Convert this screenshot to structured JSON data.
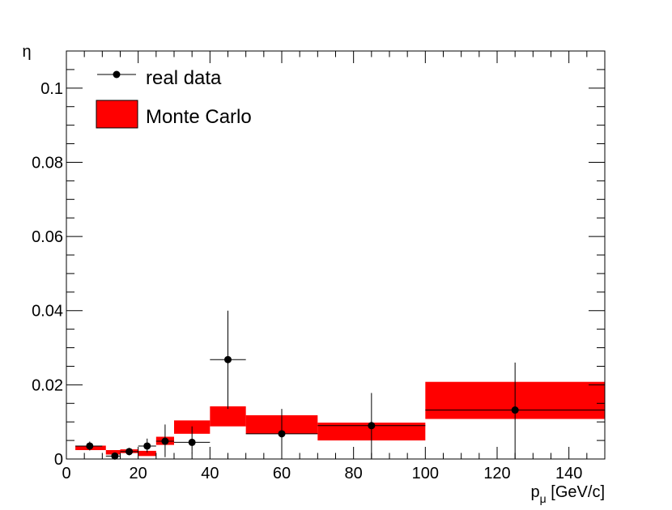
{
  "chart_data": {
    "type": "scatter",
    "xlabel": "p",
    "xlabel_sub": "μ",
    "xlabel_unit": " [GeV/c]",
    "ylabel": "η",
    "xlim": [
      0,
      150
    ],
    "ylim": [
      0,
      0.11
    ],
    "xticks": [
      0,
      20,
      40,
      60,
      80,
      100,
      120,
      140
    ],
    "xtick_labels": [
      "0",
      "20",
      "40",
      "60",
      "80",
      "100",
      "120",
      "140"
    ],
    "yticks": [
      0,
      0.02,
      0.04,
      0.06,
      0.08,
      0.1
    ],
    "ytick_labels": [
      "0",
      "0.02",
      "0.04",
      "0.06",
      "0.08",
      "0.1"
    ],
    "grid": false,
    "legend_position": "top-left",
    "series": [
      {
        "name": "real data",
        "kind": "points-with-errors",
        "color": "#000000",
        "points": [
          {
            "x": 6.5,
            "y": 0.0035,
            "xlo": 2.5,
            "xhi": 10,
            "ylo": 0.0023,
            "yhi": 0.0047
          },
          {
            "x": 13.5,
            "y": 0.0008,
            "xlo": 11,
            "xhi": 15,
            "ylo": 0.0002,
            "yhi": 0.0016
          },
          {
            "x": 17.5,
            "y": 0.002,
            "xlo": 15,
            "xhi": 20,
            "ylo": 0.001,
            "yhi": 0.003
          },
          {
            "x": 22.5,
            "y": 0.0035,
            "xlo": 20,
            "xhi": 25,
            "ylo": 0.0018,
            "yhi": 0.0055
          },
          {
            "x": 27.5,
            "y": 0.0048,
            "xlo": 25,
            "xhi": 30,
            "ylo": 0.0005,
            "yhi": 0.0093
          },
          {
            "x": 35,
            "y": 0.0045,
            "xlo": 30,
            "xhi": 40,
            "ylo": 0.0015,
            "yhi": 0.0088
          },
          {
            "x": 45,
            "y": 0.0268,
            "xlo": 40,
            "xhi": 50,
            "ylo": 0.0135,
            "yhi": 0.04
          },
          {
            "x": 60,
            "y": 0.0068,
            "xlo": 50,
            "xhi": 70,
            "ylo": 0.0005,
            "yhi": 0.0135
          },
          {
            "x": 85,
            "y": 0.009,
            "xlo": 70,
            "xhi": 100,
            "ylo": 0.0002,
            "yhi": 0.0178
          },
          {
            "x": 125,
            "y": 0.0132,
            "xlo": 100,
            "xhi": 150,
            "ylo": 0.0002,
            "yhi": 0.026
          }
        ]
      },
      {
        "name": "Monte Carlo",
        "kind": "error-bands",
        "color": "#ff0000",
        "bins": [
          {
            "x0": 2.5,
            "x1": 11,
            "lo": 0.0024,
            "hi": 0.0036
          },
          {
            "x0": 11,
            "x1": 15,
            "lo": 0.0012,
            "hi": 0.0024
          },
          {
            "x0": 15,
            "x1": 20,
            "lo": 0.0016,
            "hi": 0.0026
          },
          {
            "x0": 20,
            "x1": 25,
            "lo": 0.0008,
            "hi": 0.0022
          },
          {
            "x0": 25,
            "x1": 30,
            "lo": 0.0038,
            "hi": 0.006
          },
          {
            "x0": 30,
            "x1": 40,
            "lo": 0.0068,
            "hi": 0.0104
          },
          {
            "x0": 40,
            "x1": 50,
            "lo": 0.0088,
            "hi": 0.0142
          },
          {
            "x0": 50,
            "x1": 70,
            "lo": 0.0068,
            "hi": 0.0118
          },
          {
            "x0": 70,
            "x1": 100,
            "lo": 0.005,
            "hi": 0.0098
          },
          {
            "x0": 100,
            "x1": 150,
            "lo": 0.0108,
            "hi": 0.0208
          }
        ]
      }
    ]
  }
}
